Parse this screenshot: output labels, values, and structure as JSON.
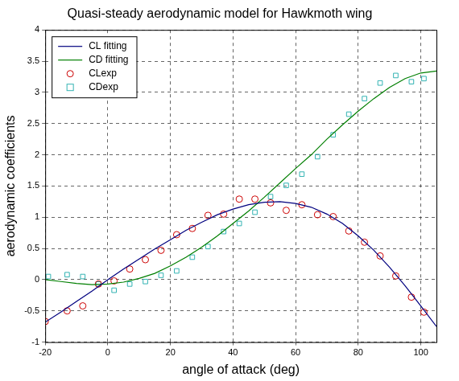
{
  "chart_data": {
    "type": "scatter",
    "title": "Quasi-steady aerodynamic model for Hawkmoth wing",
    "x_label": "angle of attack (deg)",
    "y_label": "aerodynamic coefficients",
    "xlim": [
      -20,
      105
    ],
    "xticks": [
      -20,
      0,
      20,
      40,
      60,
      80,
      100
    ],
    "ylim": [
      -1,
      4
    ],
    "yticks": [
      -1,
      -0.5,
      0,
      0.5,
      1,
      1.5,
      2,
      2.5,
      3,
      3.5,
      4
    ],
    "grid": true,
    "legend": "upper left",
    "series": [
      {
        "name": "CL fitting",
        "type": "line",
        "color": "#00007f",
        "line_style": "solid",
        "x": [
          -20,
          -15,
          -10,
          -5,
          0,
          5,
          10,
          15,
          20,
          25,
          30,
          35,
          40,
          45,
          50,
          55,
          60,
          65,
          70,
          75,
          80,
          85,
          90,
          95,
          100,
          105
        ],
        "values": [
          -0.68,
          -0.52,
          -0.35,
          -0.18,
          0.0,
          0.17,
          0.33,
          0.49,
          0.64,
          0.79,
          0.92,
          1.04,
          1.13,
          1.2,
          1.24,
          1.25,
          1.22,
          1.16,
          1.05,
          0.9,
          0.7,
          0.47,
          0.2,
          -0.1,
          -0.42,
          -0.75
        ]
      },
      {
        "name": "CD fitting",
        "type": "line",
        "color": "#007f00",
        "line_style": "solid",
        "x": [
          -20,
          -15,
          -10,
          -5,
          0,
          5,
          10,
          15,
          20,
          25,
          30,
          35,
          40,
          45,
          50,
          55,
          60,
          65,
          70,
          75,
          80,
          85,
          90,
          95,
          100,
          105
        ],
        "values": [
          0.0,
          -0.03,
          -0.06,
          -0.08,
          -0.07,
          -0.04,
          0.02,
          0.1,
          0.22,
          0.36,
          0.52,
          0.7,
          0.9,
          1.1,
          1.32,
          1.55,
          1.78,
          2.0,
          2.25,
          2.48,
          2.7,
          2.9,
          3.08,
          3.22,
          3.31,
          3.34
        ]
      },
      {
        "name": "CLexp",
        "type": "scatter",
        "color": "#cc0000",
        "marker": "circle",
        "x": [
          -20,
          -13,
          -8,
          -3,
          2,
          7,
          12,
          17,
          22,
          27,
          32,
          37,
          42,
          47,
          52,
          57,
          62,
          67,
          72,
          77,
          82,
          87,
          92,
          97,
          101
        ],
        "values": [
          -0.67,
          -0.5,
          -0.42,
          -0.07,
          -0.02,
          0.17,
          0.32,
          0.47,
          0.72,
          0.82,
          1.03,
          1.05,
          1.29,
          1.29,
          1.23,
          1.11,
          1.2,
          1.04,
          1.01,
          0.78,
          0.6,
          0.38,
          0.06,
          -0.28,
          -0.52
        ]
      },
      {
        "name": "CDexp",
        "type": "scatter",
        "color": "#33b3b3",
        "marker": "square",
        "x": [
          -19,
          -13,
          -8,
          -3,
          2,
          7,
          12,
          17,
          22,
          27,
          32,
          37,
          42,
          47,
          52,
          57,
          62,
          67,
          72,
          77,
          82,
          87,
          92,
          97,
          101
        ],
        "values": [
          0.05,
          0.08,
          0.05,
          -0.07,
          -0.17,
          -0.07,
          -0.03,
          0.07,
          0.14,
          0.36,
          0.53,
          0.77,
          0.9,
          1.08,
          1.33,
          1.51,
          1.69,
          1.97,
          2.32,
          2.65,
          2.9,
          3.15,
          3.27,
          3.17,
          3.22
        ]
      }
    ]
  }
}
